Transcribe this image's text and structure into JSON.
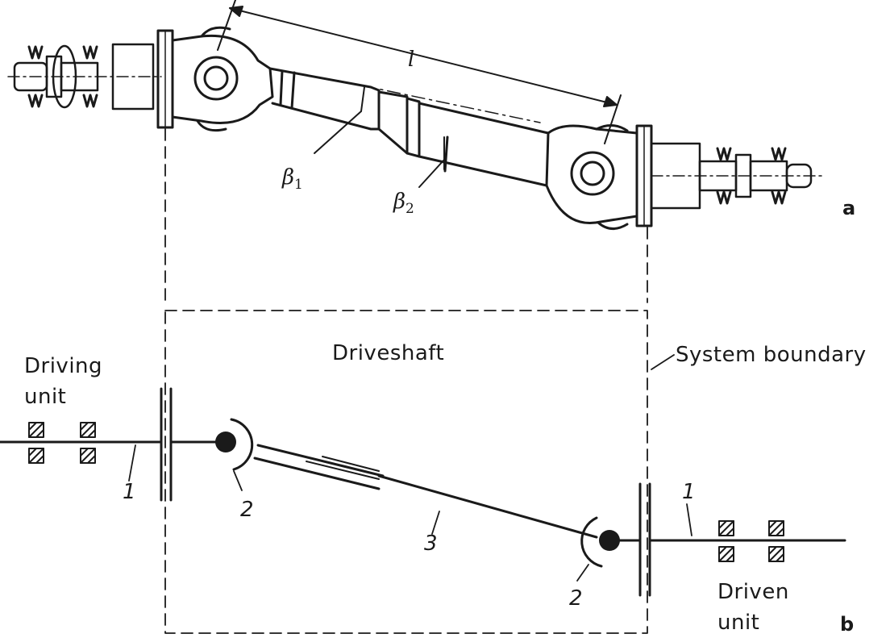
{
  "colors": {
    "ink": "#1a1a1a",
    "background": "#ffffff"
  },
  "part_a": {
    "label": "a",
    "length_symbol": "l",
    "angle_1": {
      "symbol": "β",
      "index": "1"
    },
    "angle_2": {
      "symbol": "β",
      "index": "2"
    }
  },
  "part_b": {
    "label": "b",
    "driving_unit": {
      "line1": "Driving",
      "line2": "unit"
    },
    "driven_unit": {
      "line1": "Driven",
      "line2": "unit"
    },
    "driveshaft_label": "Driveshaft",
    "system_boundary_label": "System boundary",
    "callouts": {
      "shaft_left": "1",
      "shaft_right": "1",
      "joint_left": "2",
      "joint_right": "2",
      "tube": "3"
    }
  }
}
